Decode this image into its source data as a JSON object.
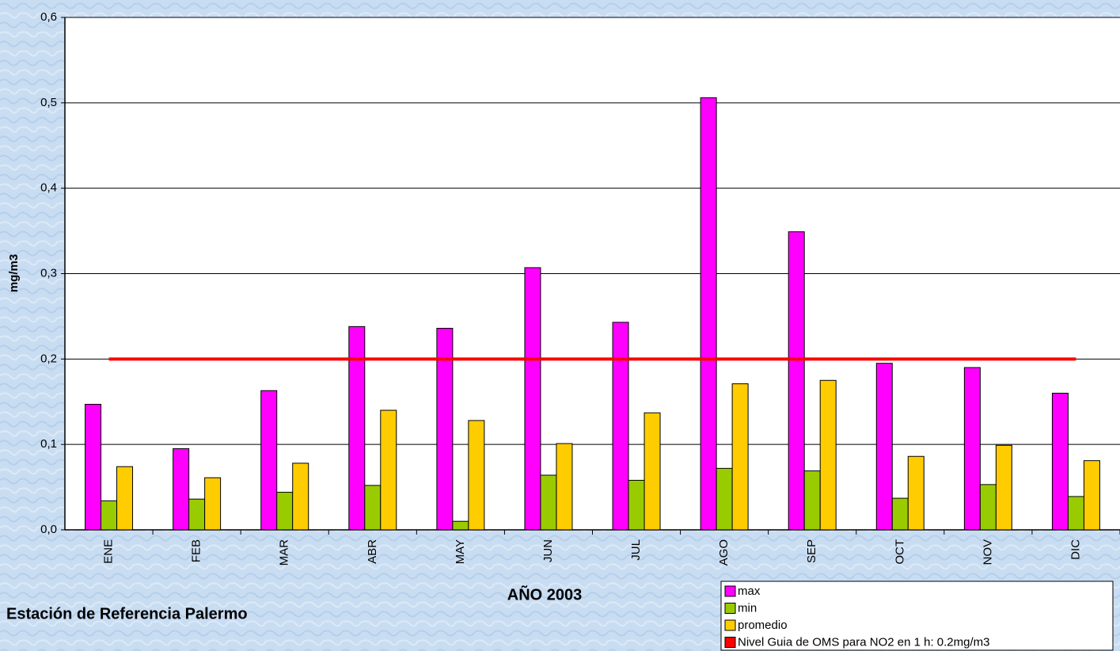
{
  "chart_data": {
    "type": "bar",
    "y_label": "mg/m3",
    "x_label": "AÑO 2003",
    "footer": "Estación de Referencia Palermo",
    "categories": [
      "ENE",
      "FEB",
      "MAR",
      "ABR",
      "MAY",
      "JUN",
      "JUL",
      "AGO",
      "SEP",
      "OCT",
      "NOV",
      "DIC"
    ],
    "series": [
      {
        "name": "max",
        "color": "#ff00ff",
        "values": [
          0.147,
          0.095,
          0.163,
          0.238,
          0.236,
          0.307,
          0.243,
          0.506,
          0.349,
          0.195,
          0.19,
          0.16
        ]
      },
      {
        "name": "min",
        "color": "#99cc00",
        "values": [
          0.034,
          0.036,
          0.044,
          0.052,
          0.01,
          0.064,
          0.058,
          0.072,
          0.069,
          0.037,
          0.053,
          0.039
        ]
      },
      {
        "name": "promedio",
        "color": "#ffcc00",
        "values": [
          0.074,
          0.061,
          0.078,
          0.14,
          0.128,
          0.101,
          0.137,
          0.171,
          0.175,
          0.086,
          0.099,
          0.081
        ]
      },
      {
        "name": "Nivel Guia de OMS  para NO2 en 1 h: 0.2mg/m3",
        "color": "#ff0000",
        "kind": "line",
        "values": [
          0.2,
          0.2,
          0.2,
          0.2,
          0.2,
          0.2,
          0.2,
          0.2,
          0.2,
          0.2,
          0.2,
          0.2
        ]
      }
    ],
    "ylim": [
      0,
      0.6
    ],
    "yticks": [
      {
        "value": 0,
        "label": "0,0"
      },
      {
        "value": 0.1,
        "label": "0,1"
      },
      {
        "value": 0.2,
        "label": "0,2"
      },
      {
        "value": 0.3,
        "label": "0,3"
      },
      {
        "value": 0.4,
        "label": "0,4"
      },
      {
        "value": 0.5,
        "label": "0,5"
      },
      {
        "value": 0.6,
        "label": "0,6"
      }
    ],
    "grid": true,
    "legend": "bottom-right"
  }
}
